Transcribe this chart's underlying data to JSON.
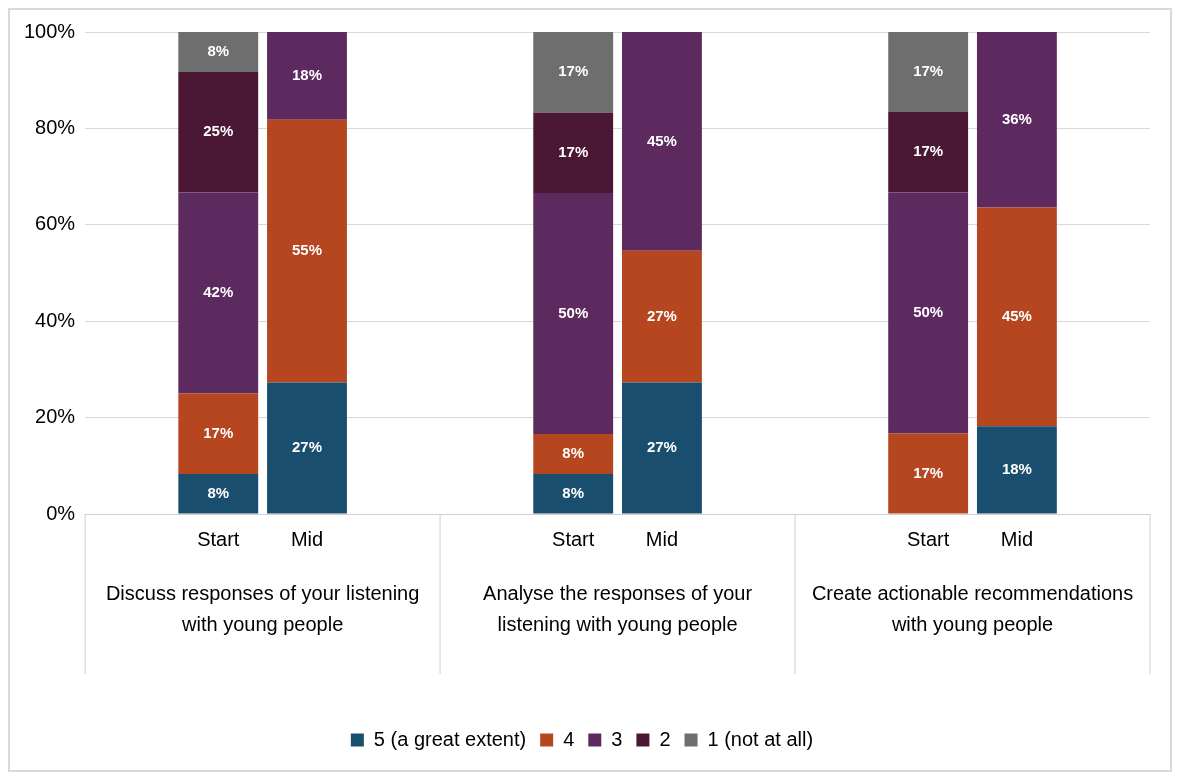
{
  "chart_data": {
    "type": "bar",
    "stacked": true,
    "categories": [
      null,
      "Start",
      "Mid",
      null,
      null,
      "Start",
      "Mid",
      null,
      null,
      "Start",
      "Mid",
      null
    ],
    "annotations": [
      "Discuss responses of your listening with young people",
      "Analyse the responses of your listening with young people",
      "Create actionable recommendations with young people"
    ],
    "series": [
      {
        "name": "5 (a great extent)",
        "color": "#1a4e6e",
        "values": [
          null,
          8.3,
          27.3,
          null,
          null,
          8.3,
          27.3,
          null,
          null,
          null,
          18.2,
          null
        ],
        "value_labels": [
          null,
          "8%",
          "27%",
          null,
          null,
          "8%",
          "27%",
          null,
          null,
          null,
          "18%",
          null
        ]
      },
      {
        "name": "4",
        "color": "#b5461f",
        "values": [
          null,
          16.7,
          54.5,
          null,
          null,
          8.3,
          27.3,
          null,
          null,
          16.7,
          45.4,
          null
        ],
        "value_labels": [
          null,
          "17%",
          "55%",
          null,
          null,
          "8%",
          "27%",
          null,
          null,
          "17%",
          "45%",
          null
        ]
      },
      {
        "name": "3",
        "color": "#5c2a5e",
        "values": [
          null,
          41.7,
          18.2,
          null,
          null,
          50,
          45.4,
          null,
          null,
          50,
          36.4,
          null
        ],
        "value_labels": [
          null,
          "42%",
          "18%",
          null,
          null,
          "50%",
          "45%",
          null,
          null,
          "50%",
          "36%",
          null
        ]
      },
      {
        "name": "2",
        "color": "#4a1734",
        "values": [
          null,
          25,
          null,
          null,
          null,
          16.7,
          null,
          null,
          null,
          16.7,
          null,
          null
        ],
        "value_labels": [
          null,
          "25%",
          null,
          null,
          null,
          "17%",
          null,
          null,
          null,
          "17%",
          null,
          null
        ]
      },
      {
        "name": "1 (not at all)",
        "color": "#6e6e6e",
        "values": [
          null,
          8.3,
          null,
          null,
          null,
          16.7,
          null,
          null,
          null,
          16.7,
          null,
          null
        ],
        "value_labels": [
          null,
          "8%",
          null,
          null,
          null,
          "17%",
          null,
          null,
          null,
          "17%",
          null,
          null
        ]
      }
    ],
    "ylim": [
      0,
      100
    ],
    "yticks": [
      {
        "value": 0,
        "label": "0%"
      },
      {
        "value": 20,
        "label": "20%"
      },
      {
        "value": 40,
        "label": "40%"
      },
      {
        "value": 60,
        "label": "60%"
      },
      {
        "value": 80,
        "label": "80%"
      },
      {
        "value": 100,
        "label": "100%"
      }
    ],
    "grid": "y",
    "legend": "bottom"
  }
}
